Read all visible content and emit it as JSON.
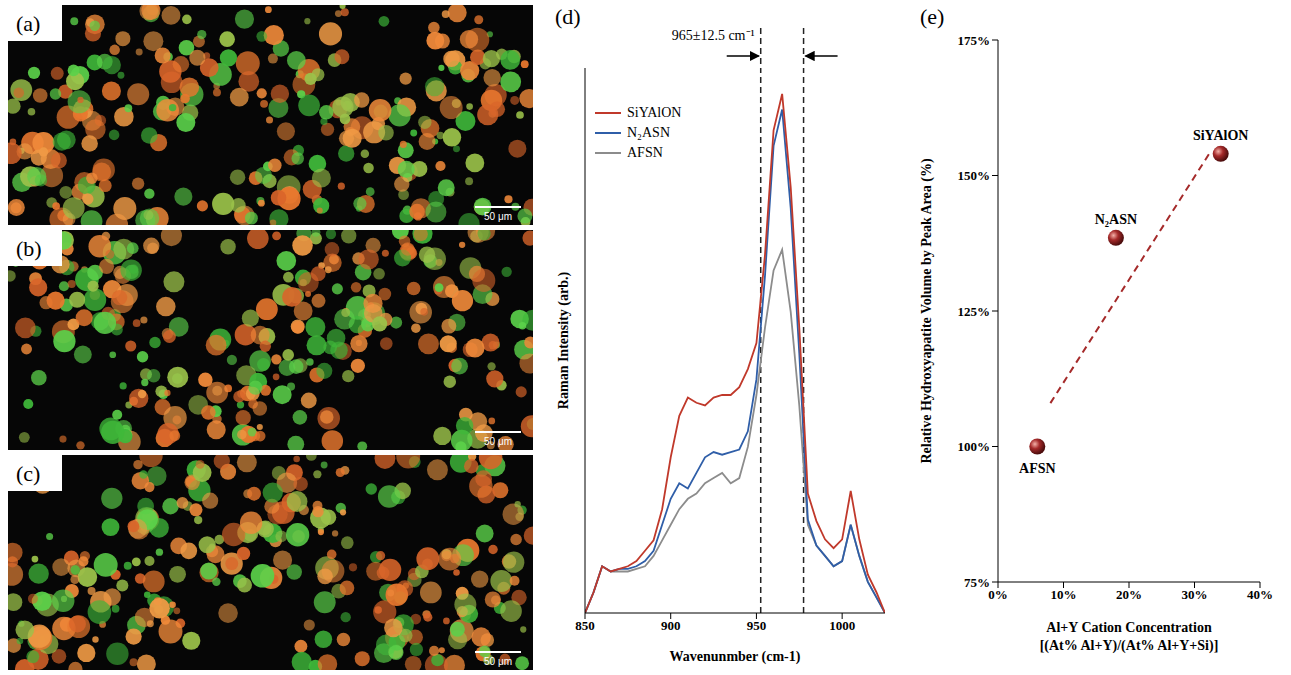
{
  "panels": [
    {
      "label": "(a)",
      "scale_bar": "50 μm"
    },
    {
      "label": "(b)",
      "scale_bar": "50 μm"
    },
    {
      "label": "(c)",
      "scale_bar": "50 μm"
    }
  ],
  "chart_data": [
    {
      "label": "(d)",
      "type": "line",
      "x_label": "Wavenunmber (cm-1)",
      "y_label": "Raman Intensity (arb.)",
      "x": [
        850,
        855,
        860,
        865,
        870,
        875,
        880,
        885,
        890,
        895,
        900,
        905,
        910,
        915,
        920,
        925,
        930,
        935,
        940,
        945,
        950,
        955,
        960,
        965,
        970,
        975,
        980,
        985,
        990,
        995,
        1000,
        1005,
        1010,
        1015,
        1020,
        1025
      ],
      "series": [
        {
          "name": "SiYAlON",
          "color": "#c0392b",
          "values": [
            0,
            4,
            9,
            8,
            8.5,
            9,
            10,
            12,
            14,
            20,
            30,
            38,
            41.5,
            40.5,
            40,
            41.5,
            42,
            42,
            43.5,
            47,
            52,
            69,
            93,
            100,
            82,
            55,
            23,
            17.7,
            14.2,
            12.5,
            14.2,
            23.5,
            14.2,
            7.4,
            4,
            0
          ]
        },
        {
          "name": "N₂ASN",
          "color": "#2f5ea8",
          "values": [
            0,
            4,
            9,
            8,
            8.5,
            8.5,
            9,
            10,
            12,
            17,
            22,
            25,
            24,
            27,
            30,
            31,
            30.5,
            31,
            31.5,
            35,
            45,
            65,
            90,
            97,
            78,
            50,
            18,
            13,
            11,
            9,
            10,
            17,
            11,
            6,
            3,
            0
          ]
        },
        {
          "name": "AFSN",
          "color": "#8c8c8c",
          "values": [
            0,
            4,
            9,
            8,
            8,
            8,
            8.5,
            9,
            11,
            14,
            17,
            20,
            22,
            23,
            25,
            26,
            27,
            25,
            26,
            32,
            42,
            55,
            66,
            70,
            58,
            40,
            17,
            13,
            11,
            9,
            10,
            17,
            11,
            6,
            3,
            0
          ]
        }
      ],
      "xlim": [
        850,
        1025
      ],
      "xticks": [
        850,
        900,
        950,
        1000
      ],
      "ylim": [
        0,
        105
      ],
      "tick_labels": "x",
      "grid": false,
      "legend": "upper left",
      "annotation": {
        "text": "965±12.5 cm⁻¹",
        "bounds": [
          952.5,
          977.5
        ],
        "line_style": "dashed"
      }
    },
    {
      "label": "(e)",
      "type": "scatter",
      "x_label": "Al+Y Cation Concentration\n[(At% Al+Y)/(At% Al+Y+Si)]",
      "y_label": "Relative Hydroxyapatite Volume by Peak Area (%)",
      "x": [
        6,
        18,
        34
      ],
      "values": [
        100,
        138.5,
        154
      ],
      "point_labels": [
        "AFSN",
        "N₂ASN",
        "SiYAlON"
      ],
      "color": "#a52a2a",
      "marker": "circle",
      "trend_line": {
        "x": [
          8,
          32.5
        ],
        "values": [
          108,
          154.5
        ],
        "color": "#a52a2a",
        "line_style": "dashed"
      },
      "xlim": [
        0,
        40
      ],
      "xticks": [
        {
          "value": 0,
          "label": "0%"
        },
        {
          "value": 10,
          "label": "10%"
        },
        {
          "value": 20,
          "label": "20%"
        },
        {
          "value": 30,
          "label": "30%"
        },
        {
          "value": 40,
          "label": "40%"
        }
      ],
      "ylim": [
        75,
        175
      ],
      "yticks": [
        {
          "value": 75,
          "label": "75%"
        },
        {
          "value": 100,
          "label": "100%"
        },
        {
          "value": 125,
          "label": "125%"
        },
        {
          "value": 150,
          "label": "150%"
        },
        {
          "value": 175,
          "label": "175%"
        }
      ],
      "grid": false
    }
  ]
}
